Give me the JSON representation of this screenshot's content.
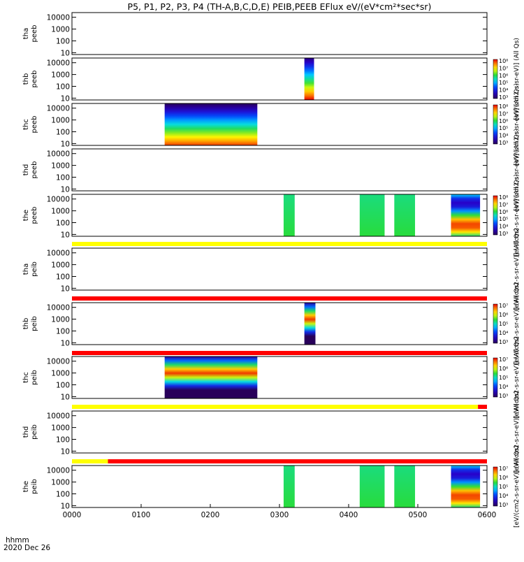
{
  "title": "P5, P1, P2, P3, P4 (TH-A,B,C,D,E) PEIB,PEEB EFlux eV/(eV*cm²*sec*sr)",
  "footer": {
    "hhmm": "hhmm",
    "date": "2020 Dec 26"
  },
  "x_ticks": [
    "0000",
    "0100",
    "0200",
    "0300",
    "0400",
    "0500",
    "0600"
  ],
  "y_ticks": [
    "10",
    "100",
    "1000",
    "10000"
  ],
  "colors": {
    "mode_yellow": "#ffff00",
    "mode_red": "#ff0000",
    "background": "#ffffff"
  },
  "chart_data": {
    "type": "heatmap",
    "title": "P5, P1, P2, P3, P4 (TH-A,B,C,D,E) PEIB,PEEB EFlux eV/(eV*cm²*sec*sr)",
    "x_range_hours": [
      0,
      6
    ],
    "y_scale": "log",
    "y_range_eV": [
      7,
      25000
    ],
    "panels": [
      {
        "label": "tha peeb",
        "colorbar": "",
        "colorbar_ticks": [],
        "data_blocks": []
      },
      {
        "label": "thb peeb",
        "colorbar": "[eV/(cm2-s-sr-eV)]  (All Qs)",
        "colorbar_ticks": [
          "10³",
          "10⁴",
          "10⁵",
          "10⁶",
          "10⁷",
          "10⁸"
        ],
        "data_blocks": [
          {
            "start_h": 3.36,
            "end_h": 3.5,
            "profile": "electron_high"
          }
        ]
      },
      {
        "label": "thc peeb",
        "colorbar": "[eV/(cm2-s-sr-eV)]  (All Qs)",
        "colorbar_ticks": [
          "10³",
          "10⁴",
          "10⁵",
          "10⁶",
          "10⁷",
          "10⁸"
        ],
        "data_blocks": [
          {
            "start_h": 1.34,
            "end_h": 2.68,
            "profile": "electron_low"
          }
        ]
      },
      {
        "label": "thd peeb",
        "colorbar": "[eV/(cm2-s-sr-eV)]  (All Qs)",
        "colorbar_ticks": [],
        "data_blocks": []
      },
      {
        "label": "the peeb",
        "colorbar": "[eV/(cm2-s-sr-eV)]  (All Qs)",
        "colorbar_ticks": [
          "10³",
          "10⁴",
          "10⁵",
          "10⁶",
          "10⁷",
          "10⁸"
        ],
        "data_blocks": [
          {
            "start_h": 3.06,
            "end_h": 3.22,
            "profile": "flat_mid"
          },
          {
            "start_h": 4.16,
            "end_h": 4.52,
            "profile": "flat_mid"
          },
          {
            "start_h": 4.66,
            "end_h": 4.96,
            "profile": "flat_mid"
          },
          {
            "start_h": 5.48,
            "end_h": 5.9,
            "profile": "mixed_hot"
          }
        ]
      },
      {
        "label": "tha peib",
        "colorbar": "[eV/(cm2-s-sr-eV)]  (All Qs)",
        "colorbar_ticks": [],
        "data_blocks": []
      },
      {
        "label": "thb peib",
        "colorbar": "[eV/(cm2-s-sr-eV)]  (All Qs)",
        "colorbar_ticks": [
          "10³",
          "10⁴",
          "10⁵",
          "10⁶",
          "10⁷"
        ],
        "data_blocks": [
          {
            "start_h": 3.36,
            "end_h": 3.52,
            "profile": "ion_mid"
          }
        ]
      },
      {
        "label": "thc peib",
        "colorbar": "[eV/(cm2-s-sr-eV)]  (All Qs)",
        "colorbar_ticks": [
          "10³",
          "10⁴",
          "10⁵",
          "10⁶",
          "10⁷"
        ],
        "data_blocks": [
          {
            "start_h": 1.34,
            "end_h": 2.68,
            "profile": "ion_mid"
          }
        ]
      },
      {
        "label": "thd peib",
        "colorbar": "[eV/(cm2-s-sr-eV)]  (All Qs)",
        "colorbar_ticks": [],
        "data_blocks": []
      },
      {
        "label": "the peib",
        "colorbar": "[eV/(cm2-s-sr-eV)]  (All Qs)",
        "colorbar_ticks": [
          "10³",
          "10⁴",
          "10⁵",
          "10⁶",
          "10⁷"
        ],
        "data_blocks": [
          {
            "start_h": 3.06,
            "end_h": 3.22,
            "profile": "flat_mid"
          },
          {
            "start_h": 4.16,
            "end_h": 4.52,
            "profile": "flat_mid"
          },
          {
            "start_h": 4.66,
            "end_h": 4.96,
            "profile": "flat_mid"
          },
          {
            "start_h": 5.48,
            "end_h": 5.9,
            "profile": "mixed_hot"
          }
        ]
      }
    ],
    "mode_bars": [
      {
        "after_panel": 4,
        "segments": [
          {
            "start_h": 0,
            "end_h": 6,
            "color": "yellow"
          }
        ]
      },
      {
        "after_panel": 5,
        "segments": [
          {
            "start_h": 0,
            "end_h": 6,
            "color": "red"
          }
        ]
      },
      {
        "after_panel": 6,
        "segments": [
          {
            "start_h": 0,
            "end_h": 6,
            "color": "red"
          }
        ]
      },
      {
        "after_panel": 7,
        "segments": [
          {
            "start_h": 0,
            "end_h": 5.87,
            "color": "yellow"
          },
          {
            "start_h": 5.87,
            "end_h": 6,
            "color": "red"
          }
        ]
      },
      {
        "after_panel": 8,
        "segments": [
          {
            "start_h": 0,
            "end_h": 0.52,
            "color": "yellow"
          },
          {
            "start_h": 0.52,
            "end_h": 6,
            "color": "red"
          }
        ]
      }
    ]
  }
}
